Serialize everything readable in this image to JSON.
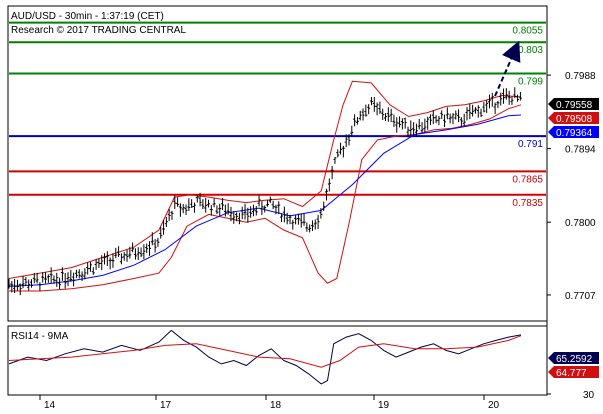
{
  "header": {
    "line1": "AUD/USD - 30min - 1:37:19 (CET)",
    "line2": "Research © 2017 TRADING CENTRAL"
  },
  "colors": {
    "resistance": "#008000",
    "pivot": "#0000c0",
    "support": "#d00000",
    "price": "#000000",
    "bollinger": "#d01010",
    "moving_average": "#0000ff",
    "rsi": "#000040",
    "rsi_ma": "#d01010",
    "arrow": "#000050"
  },
  "chart_data": [
    {
      "type": "line",
      "title": "AUD/USD - 30min",
      "x_ticks": [
        "14",
        "17",
        "18",
        "19",
        "20"
      ],
      "y_ticks": [
        0.7988,
        0.7894,
        0.78,
        0.7707
      ],
      "ylim": [
        0.7675,
        0.8075
      ],
      "levels": [
        {
          "value": 0.8055,
          "label": "0.8055",
          "kind": "resistance"
        },
        {
          "value": 0.803,
          "label": "0.803",
          "kind": "resistance"
        },
        {
          "value": 0.799,
          "label": "0.799",
          "kind": "resistance"
        },
        {
          "value": 0.791,
          "label": "0.791",
          "kind": "pivot"
        },
        {
          "value": 0.7865,
          "label": "0.7865",
          "kind": "support"
        },
        {
          "value": 0.7835,
          "label": "0.7835",
          "kind": "support"
        }
      ],
      "price_tags": [
        {
          "value": 0.79558,
          "label": "0.79558",
          "kind": "last"
        },
        {
          "value": 0.79508,
          "label": "0.79508",
          "kind": "bollinger"
        },
        {
          "value": 0.79364,
          "label": "0.79364",
          "kind": "moving_average"
        }
      ],
      "series": [
        {
          "name": "price",
          "x": [
            0,
            0.3,
            0.6,
            0.9,
            1.2,
            1.5,
            1.8,
            2.1,
            2.4,
            2.65,
            2.8,
            3.0,
            3.2,
            3.4,
            3.6,
            3.8,
            4.0,
            4.2,
            4.4,
            4.6,
            4.8,
            5.0,
            5.2,
            5.4,
            5.6,
            5.8,
            6.0,
            6.2,
            6.4,
            6.6,
            6.8,
            7.0,
            7.2,
            7.5,
            7.8,
            8.0,
            8.2
          ],
          "y": [
            0.772,
            0.7722,
            0.7725,
            0.773,
            0.7738,
            0.7748,
            0.7756,
            0.7765,
            0.7776,
            0.7822,
            0.7818,
            0.7825,
            0.7822,
            0.7818,
            0.7812,
            0.7808,
            0.782,
            0.7823,
            0.781,
            0.78,
            0.7795,
            0.781,
            0.787,
            0.7905,
            0.7935,
            0.795,
            0.7938,
            0.793,
            0.7922,
            0.7922,
            0.793,
            0.7935,
            0.793,
            0.7942,
            0.7955,
            0.796,
            0.7956
          ]
        },
        {
          "name": "upper band",
          "x": [
            0,
            0.5,
            1.0,
            1.5,
            2.0,
            2.4,
            2.65,
            2.9,
            3.2,
            3.5,
            3.8,
            4.1,
            4.4,
            4.7,
            5.0,
            5.2,
            5.35,
            5.5,
            5.8,
            6.1,
            6.4,
            6.7,
            7.0,
            7.3,
            7.6,
            7.9,
            8.2
          ],
          "y": [
            0.7728,
            0.7735,
            0.7742,
            0.7755,
            0.7768,
            0.779,
            0.7832,
            0.7835,
            0.7832,
            0.7828,
            0.7825,
            0.7828,
            0.783,
            0.782,
            0.784,
            0.7905,
            0.795,
            0.798,
            0.7978,
            0.795,
            0.7935,
            0.794,
            0.7948,
            0.795,
            0.7955,
            0.7962,
            0.796
          ]
        },
        {
          "name": "lower band",
          "x": [
            0,
            0.5,
            1.0,
            1.5,
            2.0,
            2.4,
            2.6,
            2.85,
            3.2,
            3.5,
            3.8,
            4.1,
            4.4,
            4.7,
            4.95,
            5.1,
            5.25,
            5.45,
            5.65,
            5.9,
            6.2,
            6.5,
            6.8,
            7.1,
            7.4,
            7.7,
            8.0,
            8.2
          ],
          "y": [
            0.7712,
            0.7712,
            0.7715,
            0.772,
            0.7728,
            0.7735,
            0.7755,
            0.7795,
            0.781,
            0.7805,
            0.78,
            0.7805,
            0.779,
            0.778,
            0.7735,
            0.7722,
            0.7728,
            0.78,
            0.788,
            0.7905,
            0.791,
            0.7912,
            0.7918,
            0.792,
            0.7925,
            0.7932,
            0.7945,
            0.795
          ]
        },
        {
          "name": "moving average",
          "x": [
            0,
            0.5,
            1.0,
            1.5,
            2.0,
            2.5,
            3.0,
            3.5,
            4.0,
            4.5,
            5.0,
            5.5,
            6.0,
            6.5,
            7.0,
            7.5,
            8.0,
            8.2
          ],
          "y": [
            0.7718,
            0.772,
            0.7725,
            0.7732,
            0.7745,
            0.7765,
            0.7795,
            0.7812,
            0.7818,
            0.7808,
            0.7815,
            0.7848,
            0.7888,
            0.7912,
            0.7918,
            0.7925,
            0.7936,
            0.7937
          ]
        }
      ]
    },
    {
      "type": "line",
      "title": "RSI14 - 9MA",
      "ylim": [
        30,
        70
      ],
      "y_ticks": [
        30
      ],
      "price_tags": [
        {
          "value": 65.2592,
          "label": "65.2592",
          "kind": "rsi"
        },
        {
          "value": 64.777,
          "label": "64.777",
          "kind": "rsi_ma"
        }
      ],
      "series": [
        {
          "name": "RSI14",
          "x": [
            0,
            0.3,
            0.6,
            0.9,
            1.2,
            1.5,
            1.8,
            2.1,
            2.4,
            2.6,
            2.8,
            3.0,
            3.2,
            3.4,
            3.6,
            3.8,
            4.0,
            4.2,
            4.4,
            4.6,
            4.8,
            5.0,
            5.1,
            5.2,
            5.4,
            5.6,
            5.8,
            6.0,
            6.2,
            6.4,
            6.6,
            6.8,
            7.0,
            7.2,
            7.4,
            7.6,
            7.8,
            8.0,
            8.2
          ],
          "y": [
            48,
            52,
            50,
            54,
            57,
            55,
            59,
            56,
            61,
            68,
            62,
            58,
            52,
            48,
            50,
            47,
            53,
            57,
            50,
            47,
            42,
            36,
            38,
            60,
            64,
            66,
            62,
            56,
            52,
            55,
            58,
            60,
            56,
            54,
            57,
            60,
            62,
            64,
            65.26
          ]
        },
        {
          "name": "9MA",
          "x": [
            0,
            0.5,
            1.0,
            1.5,
            2.0,
            2.5,
            3.0,
            3.5,
            4.0,
            4.5,
            5.0,
            5.3,
            5.6,
            6.0,
            6.5,
            7.0,
            7.5,
            8.0,
            8.2
          ],
          "y": [
            50,
            51,
            52,
            54,
            56,
            59,
            60,
            56,
            52,
            51,
            46,
            50,
            58,
            60,
            57,
            57,
            58,
            62,
            64.78
          ]
        }
      ]
    }
  ]
}
